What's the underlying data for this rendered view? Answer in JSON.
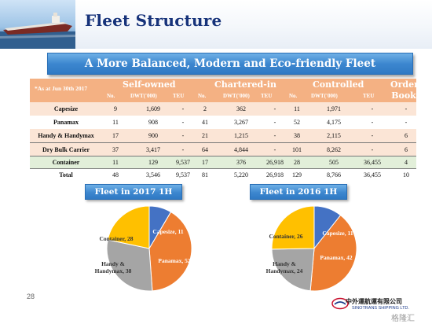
{
  "page": {
    "title": "Fleet Structure",
    "banner": "A More Balanced, Modern and Eco-friendly Fleet",
    "page_number": "28"
  },
  "table": {
    "as_at": "*As at Jun 30th 2017",
    "groups": [
      "Self-owned",
      "Chartered-in",
      "Controlled",
      "Order Book"
    ],
    "subheaders": [
      "No.",
      "DWT('000)",
      "TEU",
      "No.",
      "DWT('000)",
      "TEU",
      "No.",
      "DWT('000)",
      "TEU"
    ],
    "rows": [
      {
        "label": "Capesize",
        "vals": [
          "9",
          "1,609",
          "-",
          "2",
          "362",
          "-",
          "11",
          "1,971",
          "-",
          "-"
        ]
      },
      {
        "label": "Panamax",
        "vals": [
          "11",
          "908",
          "-",
          "41",
          "3,267",
          "-",
          "52",
          "4,175",
          "-",
          "-"
        ]
      },
      {
        "label": "Handy & Handymax",
        "vals": [
          "17",
          "900",
          "-",
          "21",
          "1,215",
          "-",
          "38",
          "2,115",
          "-",
          "6"
        ]
      },
      {
        "label": "Dry Bulk Carrier",
        "vals": [
          "37",
          "3,417",
          "-",
          "64",
          "4,844",
          "-",
          "101",
          "8,262",
          "-",
          "6"
        ]
      },
      {
        "label": "Container",
        "vals": [
          "11",
          "129",
          "9,537",
          "17",
          "376",
          "26,918",
          "28",
          "505",
          "36,455",
          "4"
        ]
      },
      {
        "label": "Total",
        "vals": [
          "48",
          "3,546",
          "9,537",
          "81",
          "5,220",
          "26,918",
          "129",
          "8,766",
          "36,455",
          "10"
        ]
      }
    ]
  },
  "pies": [
    {
      "title": "Fleet in 2017 1H",
      "slices": [
        {
          "label": "Capesize, 11",
          "value": 11,
          "color": "#4472c4"
        },
        {
          "label": "Panamax, 52",
          "value": 52,
          "color": "#ed7d31"
        },
        {
          "label": "Handy & Handymax, 38",
          "value": 38,
          "color": "#a5a5a5"
        },
        {
          "label": "Container, 28",
          "value": 28,
          "color": "#ffc000"
        }
      ]
    },
    {
      "title": "Fleet in 2016 1H",
      "slices": [
        {
          "label": "Capesize, 11",
          "value": 11,
          "color": "#4472c4"
        },
        {
          "label": "Panamax, 42",
          "value": 42,
          "color": "#ed7d31"
        },
        {
          "label": "Handy & Handymax, 24",
          "value": 24,
          "color": "#a5a5a5"
        },
        {
          "label": "Container, 26",
          "value": 26,
          "color": "#ffc000"
        }
      ]
    }
  ],
  "chart_data": [
    {
      "type": "pie",
      "title": "Fleet in 2017 1H",
      "categories": [
        "Capesize",
        "Panamax",
        "Handy & Handymax",
        "Container"
      ],
      "values": [
        11,
        52,
        38,
        28
      ]
    },
    {
      "type": "pie",
      "title": "Fleet in 2016 1H",
      "categories": [
        "Capesize",
        "Panamax",
        "Handy & Handymax",
        "Container"
      ],
      "values": [
        11,
        42,
        24,
        26
      ]
    }
  ],
  "footer": {
    "company_cn": "中外運航運有限公司",
    "company_en": "SINOTRANS SHIPPING LTD.",
    "watermark": "格隆汇"
  },
  "colors": {
    "title": "#17337a",
    "banner": "#3d87cf",
    "table_header": "#f4b183",
    "row_light": "#fbe5d6",
    "row_green": "#e2efd9"
  }
}
